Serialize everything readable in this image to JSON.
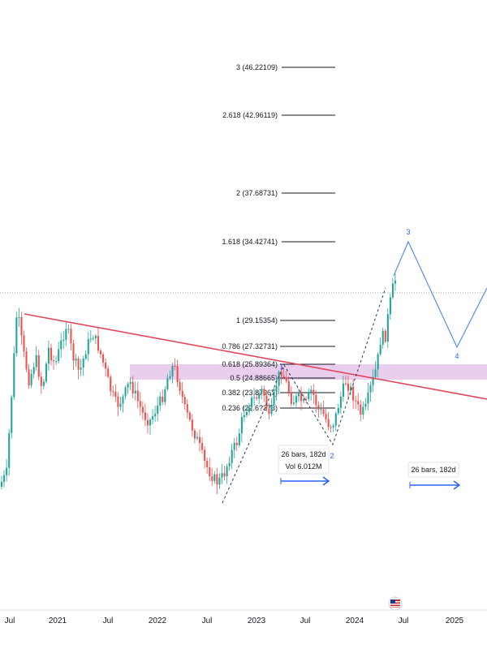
{
  "chart_data": {
    "type": "candlestick",
    "x_axis_labels": [
      "Jul",
      "2021",
      "Jul",
      "2022",
      "Jul",
      "2023",
      "Jul",
      "2024",
      "Jul",
      "2025"
    ],
    "fib_levels": [
      {
        "ratio": "0.236",
        "price": "22.6?373",
        "label": "0.236 (22.6?373)"
      },
      {
        "ratio": "0.382",
        "price": "23.87967",
        "label": "0.382 (23.87967)"
      },
      {
        "ratio": "0.5",
        "price": "24.88665",
        "label": "0.5 (24.88665)"
      },
      {
        "ratio": "0.618",
        "price": "25.89364",
        "label": "0.618 (25.89364)"
      },
      {
        "ratio": "0.786",
        "price": "27.32731",
        "label": "0.786 (27.32731)"
      },
      {
        "ratio": "1",
        "price": "29.15354",
        "label": "1 (29.15354)"
      },
      {
        "ratio": "1.618",
        "price": "34.42741",
        "label": "1.618 (34.42741)"
      },
      {
        "ratio": "2",
        "price": "37.68731",
        "label": "2 (37.68731)"
      },
      {
        "ratio": "2.618",
        "price": "42.96119",
        "label": "2.618 (42.96119)"
      },
      {
        "ratio": "3",
        "price": "46.22109",
        "label": "3 (46.22109)"
      }
    ],
    "wave_labels": [
      "1",
      "2",
      "3",
      "4"
    ],
    "measure_boxes": [
      {
        "line1": "26 bars, 182d",
        "line2": "Vol 6.012M"
      },
      {
        "line1": "26 bars, 182d",
        "line2": ""
      }
    ],
    "colors": {
      "up": "#26a69a",
      "down": "#ef5350",
      "trendline": "#e0475b",
      "zone": "#e1bee7",
      "wave": "#5b8def",
      "arrow": "#2962ff",
      "fib_line": "#131722"
    }
  }
}
